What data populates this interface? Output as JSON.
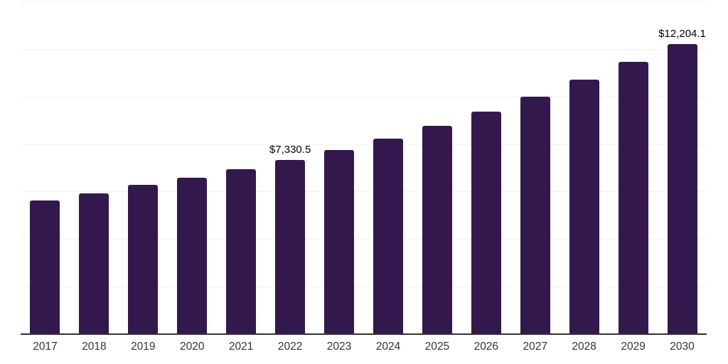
{
  "chart_data": {
    "type": "bar",
    "categories": [
      "2017",
      "2018",
      "2019",
      "2020",
      "2021",
      "2022",
      "2023",
      "2024",
      "2025",
      "2026",
      "2027",
      "2028",
      "2029",
      "2030"
    ],
    "values": [
      5620,
      5920,
      6270,
      6590,
      6950,
      7330.5,
      7760,
      8240,
      8780,
      9360,
      10000,
      10700,
      11450,
      12204.1
    ],
    "annotations": [
      {
        "category": "2022",
        "text": "$7,330.5"
      },
      {
        "category": "2030",
        "text": "$12,204.1"
      }
    ],
    "title": "",
    "xlabel": "",
    "ylabel": "",
    "ylim": [
      0,
      14000
    ],
    "grid_step": 2000,
    "grid": true,
    "legend": false,
    "y_axis_labels_visible": false,
    "colors": {
      "bar": "#33184d",
      "axis_line": "#333333",
      "gridline": "#f1f1f1",
      "data_label": "#000000",
      "tick_label": "#333333",
      "background": "#ffffff"
    }
  }
}
